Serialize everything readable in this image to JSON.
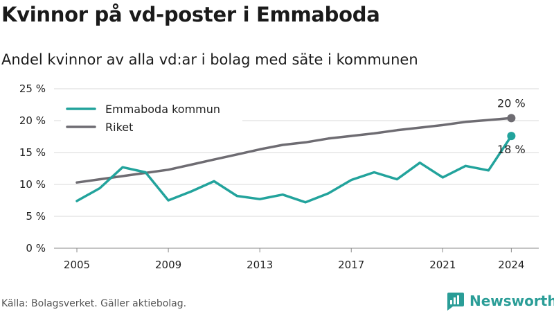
{
  "title": "Kvinnor på vd-poster i Emmaboda",
  "subtitle": "Andel kvinnor av alla vd:ar i bolag med säte i kommunen",
  "source": "Källa: Bolagsverket. Gäller aktiebolag.",
  "brand": "Newsworthy",
  "colors": {
    "teal": "#22a39c",
    "gray": "#6e6c72",
    "grid": "#d9d9d9",
    "brand": "#2a9d97"
  },
  "chart_data": {
    "type": "line",
    "title": "Kvinnor på vd-poster i Emmaboda",
    "subtitle": "Andel kvinnor av alla vd:ar i bolag med säte i kommunen",
    "x": [
      2005,
      2006,
      2007,
      2008,
      2009,
      2010,
      2011,
      2012,
      2013,
      2014,
      2015,
      2016,
      2017,
      2018,
      2019,
      2020,
      2021,
      2022,
      2023,
      2024
    ],
    "xticks": [
      2005,
      2009,
      2013,
      2017,
      2021,
      2024
    ],
    "xtick_labels": [
      "2005",
      "2009",
      "2013",
      "2017",
      "2021",
      "2024"
    ],
    "ylim": [
      0,
      25
    ],
    "yticks": [
      0,
      5,
      10,
      15,
      20,
      25
    ],
    "ytick_labels": [
      "0 %",
      "5 %",
      "10 %",
      "15 %",
      "20 %",
      "25 %"
    ],
    "grid": true,
    "legend_position": "top-left",
    "series": [
      {
        "name": "Emmaboda kommun",
        "color": "#22a39c",
        "values": [
          7.4,
          9.4,
          12.7,
          11.9,
          7.5,
          8.9,
          10.5,
          8.2,
          7.7,
          8.4,
          7.2,
          8.6,
          10.7,
          11.9,
          10.8,
          13.4,
          11.1,
          12.9,
          12.2,
          17.6
        ],
        "end_label": "18 %"
      },
      {
        "name": "Riket",
        "color": "#6e6c72",
        "values": [
          10.3,
          10.8,
          11.3,
          11.8,
          12.3,
          13.1,
          13.9,
          14.7,
          15.5,
          16.2,
          16.6,
          17.2,
          17.6,
          18.0,
          18.5,
          18.9,
          19.3,
          19.8,
          20.1,
          20.4
        ],
        "end_label": "20 %"
      }
    ]
  }
}
